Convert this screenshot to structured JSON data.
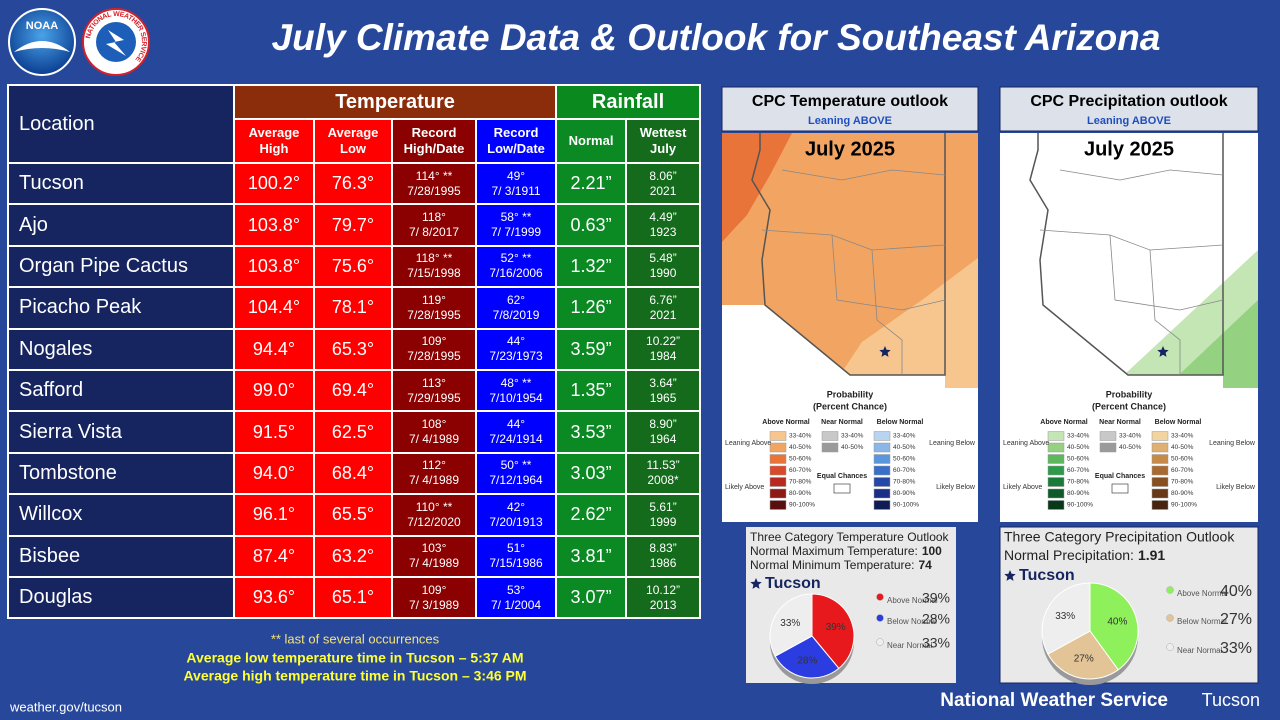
{
  "header": {
    "title": "July Climate Data & Outlook for Southeast Arizona",
    "noaa_logo": "NOAA",
    "nws_logo": "NATIONAL WEATHER SERVICE"
  },
  "table": {
    "columns": {
      "location": "Location",
      "temperature": "Temperature",
      "rainfall": "Rainfall",
      "subheaders": [
        "Average High",
        "Average Low",
        "Record High/Date",
        "Record Low/Date",
        "Normal",
        "Wettest July"
      ]
    },
    "rows": [
      [
        "Tucson",
        "100.2°",
        "76.3°",
        "114° **",
        "7/28/1995",
        "49°",
        "7/ 3/1911",
        "2.21”",
        "8.06”",
        "2021"
      ],
      [
        "Ajo",
        "103.8°",
        "79.7°",
        "118°",
        "7/ 8/2017",
        "58° **",
        "7/ 7/1999",
        "0.63”",
        "4.49”",
        "1923"
      ],
      [
        "Organ Pipe Cactus",
        "103.8°",
        "75.6°",
        "118° **",
        "7/15/1998",
        "52° **",
        "7/16/2006",
        "1.32”",
        "5.48”",
        "1990"
      ],
      [
        "Picacho Peak",
        "104.4°",
        "78.1°",
        "119°",
        "7/28/1995",
        "62°",
        "7/8/2019",
        "1.26”",
        "6.76”",
        "2021"
      ],
      [
        "Nogales",
        "94.4°",
        "65.3°",
        "109°",
        "7/28/1995",
        "44°",
        "7/23/1973",
        "3.59”",
        "10.22”",
        "1984"
      ],
      [
        "Safford",
        "99.0°",
        "69.4°",
        "113°",
        "7/29/1995",
        "48° **",
        "7/10/1954",
        "1.35”",
        "3.64”",
        "1965"
      ],
      [
        "Sierra Vista",
        "91.5°",
        "62.5°",
        "108°",
        "7/ 4/1989",
        "44°",
        "7/24/1914",
        "3.53”",
        "8.90”",
        "1964"
      ],
      [
        "Tombstone",
        "94.0°",
        "68.4°",
        "112°",
        "7/ 4/1989",
        "50° **",
        "7/12/1964",
        "3.03”",
        "11.53”",
        "2008*"
      ],
      [
        "Willcox",
        "96.1°",
        "65.5°",
        "110° **",
        "7/12/2020",
        "42°",
        "7/20/1913",
        "2.62”",
        "5.61”",
        "1999"
      ],
      [
        "Bisbee",
        "87.4°",
        "63.2°",
        "103°",
        "7/ 4/1989",
        "51°",
        "7/15/1986",
        "3.81”",
        "8.83”",
        "1986"
      ],
      [
        "Douglas",
        "93.6°",
        "65.1°",
        "109°",
        "7/ 3/1989",
        "53°",
        "7/ 1/2004",
        "3.07”",
        "10.12”",
        "2013"
      ]
    ]
  },
  "footnotes": [
    "** last of several occurrences",
    "Average low temperature time in Tucson – 5:37 AM",
    "Average high temperature time in Tucson – 3:46 PM"
  ],
  "footer": {
    "url": "weather.gov/tucson",
    "org": "National Weather Service",
    "office": "Tucson"
  },
  "legend": {
    "title": "Probability",
    "subtitle": "(Percent Chance)",
    "bins": [
      "33-40%",
      "40-50%",
      "50-60%",
      "60-70%",
      "70-80%",
      "80-90%",
      "90-100%"
    ],
    "leaning_above": "Leaning Above",
    "likely_above": "Likely Above",
    "leaning_below": "Leaning Below",
    "likely_below": "Likely Below",
    "equal": "Equal Chances"
  },
  "maps": [
    {
      "title": "CPC Temperature outlook",
      "subtitle": "Leaning ABOVE",
      "label": "July 2025",
      "legend_columns": [
        "Above Normal",
        "Near Normal",
        "Below Normal"
      ],
      "colors": {
        "above": [
          "#f7c68f",
          "#f2a562",
          "#e8743a",
          "#d84a2a",
          "#b82a1f",
          "#8e1a16",
          "#5a0e0e"
        ],
        "near": [
          "#c8c8c8",
          "#9a9a9a"
        ],
        "below": [
          "#b8d4f0",
          "#8ab6e8",
          "#5a96dc",
          "#3a6fc8",
          "#2448a8",
          "#1a2e88",
          "#101a55"
        ]
      }
    },
    {
      "title": "CPC Precipitation outlook",
      "subtitle": "Leaning ABOVE",
      "label": "July 2025",
      "legend_columns": [
        "Above Normal",
        "Near Normal",
        "Below Normal"
      ],
      "colors": {
        "above": [
          "#c4e6b4",
          "#94d282",
          "#5cb85a",
          "#2e9a4a",
          "#1a7a3a",
          "#0f5a2a",
          "#07381a"
        ],
        "near": [
          "#c8c8c8",
          "#9a9a9a"
        ],
        "below": [
          "#f2d4a0",
          "#e0b070",
          "#c88a48",
          "#a86a30",
          "#885020",
          "#683818",
          "#482410"
        ]
      }
    }
  ],
  "outlooks": [
    {
      "title": "Three Category Temperature Outlook",
      "lines": [
        {
          "label": "Normal Maximum Temperature:",
          "value": 100
        },
        {
          "label": "Normal Minimum Temperature:",
          "value": 74
        }
      ],
      "location": "Tucson",
      "categories": [
        "Above Normal",
        "Below Normal",
        "Near Normal"
      ],
      "values": [
        39,
        28,
        33
      ],
      "value_labels": [
        "39%",
        "28%",
        "33%"
      ],
      "colors": [
        "#e8191d",
        "#2b3ce0",
        "#eeeeee"
      ]
    },
    {
      "title": "Three Category Precipitation Outlook",
      "lines": [
        {
          "label": "Normal Precipitation:",
          "value": 1.91
        }
      ],
      "location": "Tucson",
      "categories": [
        "Above Normal",
        "Below Normal",
        "Near Normal"
      ],
      "values": [
        40,
        27,
        33
      ],
      "value_labels": [
        "40%",
        "27%",
        "33%"
      ],
      "colors": [
        "#8ef05a",
        "#e2c496",
        "#eeeeee"
      ]
    }
  ]
}
